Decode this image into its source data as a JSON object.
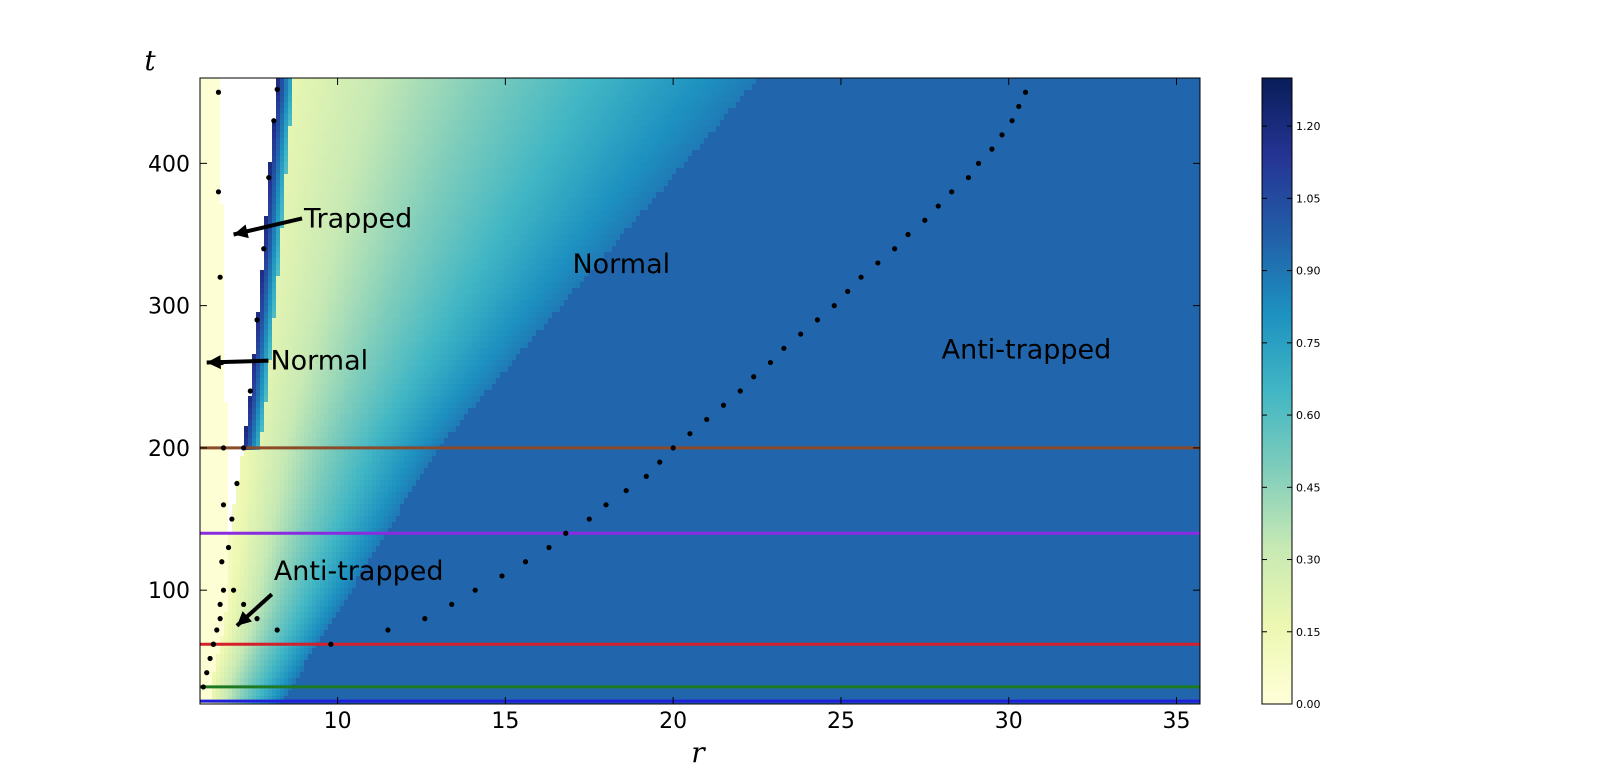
{
  "chart_data": {
    "type": "heatmap",
    "xlabel": "r",
    "ylabel": "t",
    "xlim": [
      5.9,
      35.7
    ],
    "ylim": [
      20,
      460
    ],
    "xticks": [
      10,
      15,
      20,
      25,
      30,
      35
    ],
    "yticks": [
      100,
      200,
      300,
      400
    ],
    "colormap": {
      "name": "YlGnBu",
      "range": [
        0.0,
        1.3
      ],
      "ticks": [
        "0.00",
        "0.15",
        "0.30",
        "0.45",
        "0.60",
        "0.75",
        "0.90",
        "1.05",
        "1.20"
      ],
      "stops": [
        "#ffffd9",
        "#edf8b1",
        "#c7e9b4",
        "#7fcdbb",
        "#41b6c4",
        "#1d91c0",
        "#225ea8",
        "#253494",
        "#081d58"
      ]
    },
    "field": {
      "saturated_value": 0.95,
      "saturated_color": "#2657a8",
      "blank_region_color": "#ffffff"
    },
    "horizontal_lines": [
      {
        "t": 22,
        "color": "#1f1fdc"
      },
      {
        "t": 32,
        "color": "#1e7a22"
      },
      {
        "t": 62,
        "color": "#d4202a"
      },
      {
        "t": 140,
        "color": "#8a2be2"
      },
      {
        "t": 200,
        "color": "#8b4a2a"
      }
    ],
    "dotted_curves": {
      "left_boundary": [
        [
          6.0,
          32
        ],
        [
          6.1,
          42
        ],
        [
          6.2,
          52
        ],
        [
          6.3,
          62
        ],
        [
          6.4,
          72
        ],
        [
          6.5,
          90
        ],
        [
          6.55,
          120
        ],
        [
          6.6,
          160
        ],
        [
          6.6,
          200
        ],
        [
          6.55,
          260
        ],
        [
          6.5,
          320
        ],
        [
          6.45,
          380
        ],
        [
          6.45,
          450
        ]
      ],
      "trapped_boundary": [
        [
          6.3,
          62
        ],
        [
          6.5,
          80
        ],
        [
          6.6,
          100
        ],
        [
          6.75,
          130
        ],
        [
          6.85,
          150
        ],
        [
          7.0,
          175
        ],
        [
          7.2,
          200
        ],
        [
          7.4,
          240
        ],
        [
          7.6,
          290
        ],
        [
          7.8,
          340
        ],
        [
          7.95,
          390
        ],
        [
          8.1,
          430
        ],
        [
          8.2,
          452
        ]
      ],
      "inner_branch": [
        [
          6.9,
          100
        ],
        [
          7.2,
          90
        ],
        [
          7.6,
          80
        ],
        [
          8.2,
          72
        ]
      ],
      "outer_boundary": [
        [
          9.8,
          62
        ],
        [
          11.5,
          72
        ],
        [
          12.6,
          80
        ],
        [
          13.4,
          90
        ],
        [
          14.1,
          100
        ],
        [
          14.9,
          110
        ],
        [
          15.6,
          120
        ],
        [
          16.3,
          130
        ],
        [
          16.8,
          140
        ],
        [
          17.5,
          150
        ],
        [
          18.0,
          160
        ],
        [
          18.6,
          170
        ],
        [
          19.2,
          180
        ],
        [
          19.6,
          190
        ],
        [
          20.0,
          200
        ],
        [
          20.5,
          210
        ],
        [
          21.0,
          220
        ],
        [
          21.5,
          230
        ],
        [
          22.0,
          240
        ],
        [
          22.4,
          250
        ],
        [
          22.9,
          260
        ],
        [
          23.3,
          270
        ],
        [
          23.8,
          280
        ],
        [
          24.3,
          290
        ],
        [
          24.8,
          300
        ],
        [
          25.2,
          310
        ],
        [
          25.6,
          320
        ],
        [
          26.1,
          330
        ],
        [
          26.6,
          340
        ],
        [
          27.0,
          350
        ],
        [
          27.5,
          360
        ],
        [
          27.9,
          370
        ],
        [
          28.3,
          380
        ],
        [
          28.8,
          390
        ],
        [
          29.1,
          400
        ],
        [
          29.5,
          410
        ],
        [
          29.8,
          420
        ],
        [
          30.1,
          430
        ],
        [
          30.3,
          440
        ],
        [
          30.5,
          450
        ]
      ]
    },
    "annotations": [
      {
        "text": "Trapped",
        "x": 9.0,
        "y": 355,
        "arrow_to": [
          6.9,
          350
        ]
      },
      {
        "text": "Normal",
        "x": 8.0,
        "y": 255,
        "arrow_to": [
          6.1,
          260
        ]
      },
      {
        "text": "Anti-trapped",
        "x": 8.1,
        "y": 107,
        "arrow_to": [
          7.0,
          75
        ]
      },
      {
        "text": "Normal",
        "x": 17.0,
        "y": 323,
        "arrow_to": null
      },
      {
        "text": "Anti-trapped",
        "x": 28.0,
        "y": 263,
        "arrow_to": null
      }
    ]
  }
}
